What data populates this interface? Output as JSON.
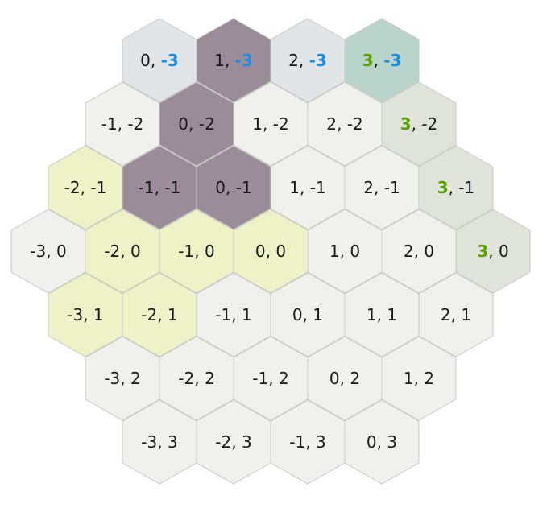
{
  "title": "",
  "colors": {
    "default": "#f0f1ed",
    "q_line": "#dfe3d9",
    "r_line": "#e1e5e8",
    "q_r_corner": "#b9d4cb",
    "path": "#9a8c98",
    "region": "#eef2c6",
    "q_text": "#5aa300",
    "r_text": "#1a8fe3"
  },
  "highlight": {
    "q": 3,
    "r": -3
  },
  "hexes": [
    {
      "q": 0,
      "r": -3,
      "label": "0, -3",
      "style": "r_line"
    },
    {
      "q": 1,
      "r": -3,
      "label": "1, -3",
      "style": "path"
    },
    {
      "q": 2,
      "r": -3,
      "label": "2, -3",
      "style": "r_line"
    },
    {
      "q": 3,
      "r": -3,
      "label": "3, -3",
      "style": "q_r_corner"
    },
    {
      "q": -1,
      "r": -2,
      "label": "-1, -2",
      "style": "default"
    },
    {
      "q": 0,
      "r": -2,
      "label": "0, -2",
      "style": "path"
    },
    {
      "q": 1,
      "r": -2,
      "label": "1, -2",
      "style": "default"
    },
    {
      "q": 2,
      "r": -2,
      "label": "2, -2",
      "style": "default"
    },
    {
      "q": 3,
      "r": -2,
      "label": "3, -2",
      "style": "q_line"
    },
    {
      "q": -2,
      "r": -1,
      "label": "-2, -1",
      "style": "region"
    },
    {
      "q": -1,
      "r": -1,
      "label": "-1, -1",
      "style": "path"
    },
    {
      "q": 0,
      "r": -1,
      "label": "0, -1",
      "style": "path"
    },
    {
      "q": 1,
      "r": -1,
      "label": "1, -1",
      "style": "default"
    },
    {
      "q": 2,
      "r": -1,
      "label": "2, -1",
      "style": "default"
    },
    {
      "q": 3,
      "r": -1,
      "label": "3, -1",
      "style": "q_line"
    },
    {
      "q": -3,
      "r": 0,
      "label": "-3, 0",
      "style": "default"
    },
    {
      "q": -2,
      "r": 0,
      "label": "-2, 0",
      "style": "region"
    },
    {
      "q": -1,
      "r": 0,
      "label": "-1, 0",
      "style": "region"
    },
    {
      "q": 0,
      "r": 0,
      "label": "0, 0",
      "style": "region"
    },
    {
      "q": 1,
      "r": 0,
      "label": "1, 0",
      "style": "default"
    },
    {
      "q": 2,
      "r": 0,
      "label": "2, 0",
      "style": "default"
    },
    {
      "q": 3,
      "r": 0,
      "label": "3, 0",
      "style": "q_line"
    },
    {
      "q": -3,
      "r": 1,
      "label": "-3, 1",
      "style": "region"
    },
    {
      "q": -2,
      "r": 1,
      "label": "-2, 1",
      "style": "region"
    },
    {
      "q": -1,
      "r": 1,
      "label": "-1, 1",
      "style": "default"
    },
    {
      "q": 0,
      "r": 1,
      "label": "0, 1",
      "style": "default"
    },
    {
      "q": 1,
      "r": 1,
      "label": "1, 1",
      "style": "default"
    },
    {
      "q": 2,
      "r": 1,
      "label": "2, 1",
      "style": "default"
    },
    {
      "q": -3,
      "r": 2,
      "label": "-3, 2",
      "style": "default"
    },
    {
      "q": -2,
      "r": 2,
      "label": "-2, 2",
      "style": "default"
    },
    {
      "q": -1,
      "r": 2,
      "label": "-1, 2",
      "style": "default"
    },
    {
      "q": 0,
      "r": 2,
      "label": "0, 2",
      "style": "default"
    },
    {
      "q": 1,
      "r": 2,
      "label": "1, 2",
      "style": "default"
    },
    {
      "q": -3,
      "r": 3,
      "label": "-3, 3",
      "style": "default"
    },
    {
      "q": -2,
      "r": 3,
      "label": "-2, 3",
      "style": "default"
    },
    {
      "q": -1,
      "r": 3,
      "label": "-1, 3",
      "style": "default"
    },
    {
      "q": 0,
      "r": 3,
      "label": "0, 3",
      "style": "default"
    }
  ]
}
